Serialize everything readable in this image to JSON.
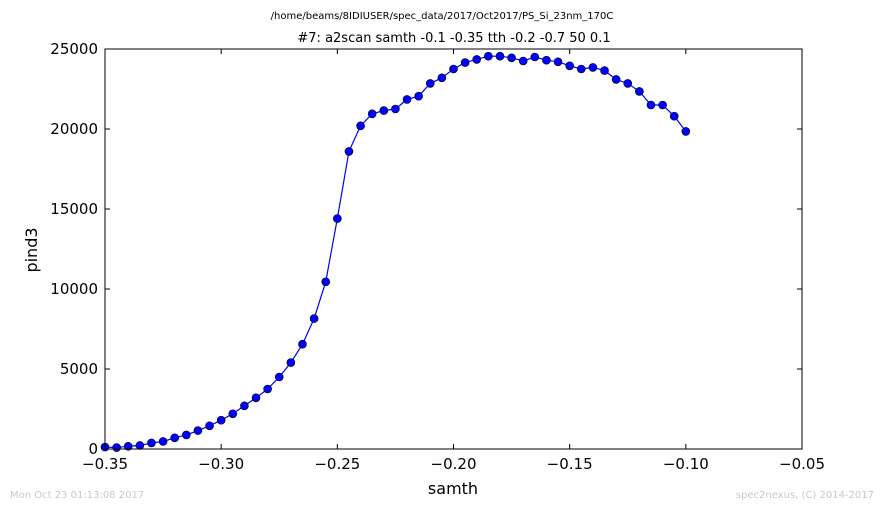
{
  "header": {
    "path": "/home/beams/8IDIUSER/spec_data/2017/Oct2017/PS_Si_23nm_170C"
  },
  "footer": {
    "timestamp": "Mon Oct 23 01:13:08 2017",
    "credit": "spec2nexus, (C) 2014-2017"
  },
  "chart_data": {
    "type": "line",
    "title": "#7: a2scan  samth -0.1 -0.35  tth -0.2 -0.7  50 0.1",
    "xlabel": "samth",
    "ylabel": "pind3",
    "xlim": [
      -0.35,
      -0.05
    ],
    "ylim": [
      0,
      25000
    ],
    "x_ticks": [
      "−0.35",
      "−0.30",
      "−0.25",
      "−0.20",
      "−0.15",
      "−0.10",
      "−0.05"
    ],
    "x_tick_values": [
      -0.35,
      -0.3,
      -0.25,
      -0.2,
      -0.15,
      -0.1,
      -0.05
    ],
    "y_ticks": [
      "0",
      "5000",
      "10000",
      "15000",
      "20000",
      "25000"
    ],
    "y_tick_values": [
      0,
      5000,
      10000,
      15000,
      20000,
      25000
    ],
    "grid": false,
    "line_color": "#0000ff",
    "marker": "circle",
    "series": [
      {
        "x": [
          -0.35,
          -0.345,
          -0.34,
          -0.335,
          -0.33,
          -0.325,
          -0.32,
          -0.315,
          -0.31,
          -0.305,
          -0.3,
          -0.295,
          -0.29,
          -0.285,
          -0.28,
          -0.275,
          -0.27,
          -0.265,
          -0.26,
          -0.255,
          -0.25,
          -0.245,
          -0.24,
          -0.235,
          -0.23,
          -0.225,
          -0.22,
          -0.215,
          -0.21,
          -0.205,
          -0.2,
          -0.195,
          -0.19,
          -0.185,
          -0.18,
          -0.175,
          -0.17,
          -0.165,
          -0.16,
          -0.155,
          -0.15,
          -0.145,
          -0.14,
          -0.135,
          -0.13,
          -0.125,
          -0.12,
          -0.115,
          -0.11,
          -0.105,
          -0.1
        ],
        "y": [
          120,
          90,
          170,
          220,
          380,
          470,
          700,
          880,
          1150,
          1450,
          1800,
          2200,
          2700,
          3200,
          3750,
          4500,
          5400,
          6550,
          8150,
          10450,
          14400,
          18600,
          20200,
          20950,
          21150,
          21250,
          21850,
          22050,
          22850,
          23200,
          23750,
          24150,
          24350,
          24550,
          24550,
          24450,
          24250,
          24500,
          24300,
          24200,
          23950,
          23750,
          23850,
          23650,
          23100,
          22850,
          22350,
          21500,
          21500,
          20800,
          19850
        ]
      }
    ]
  }
}
